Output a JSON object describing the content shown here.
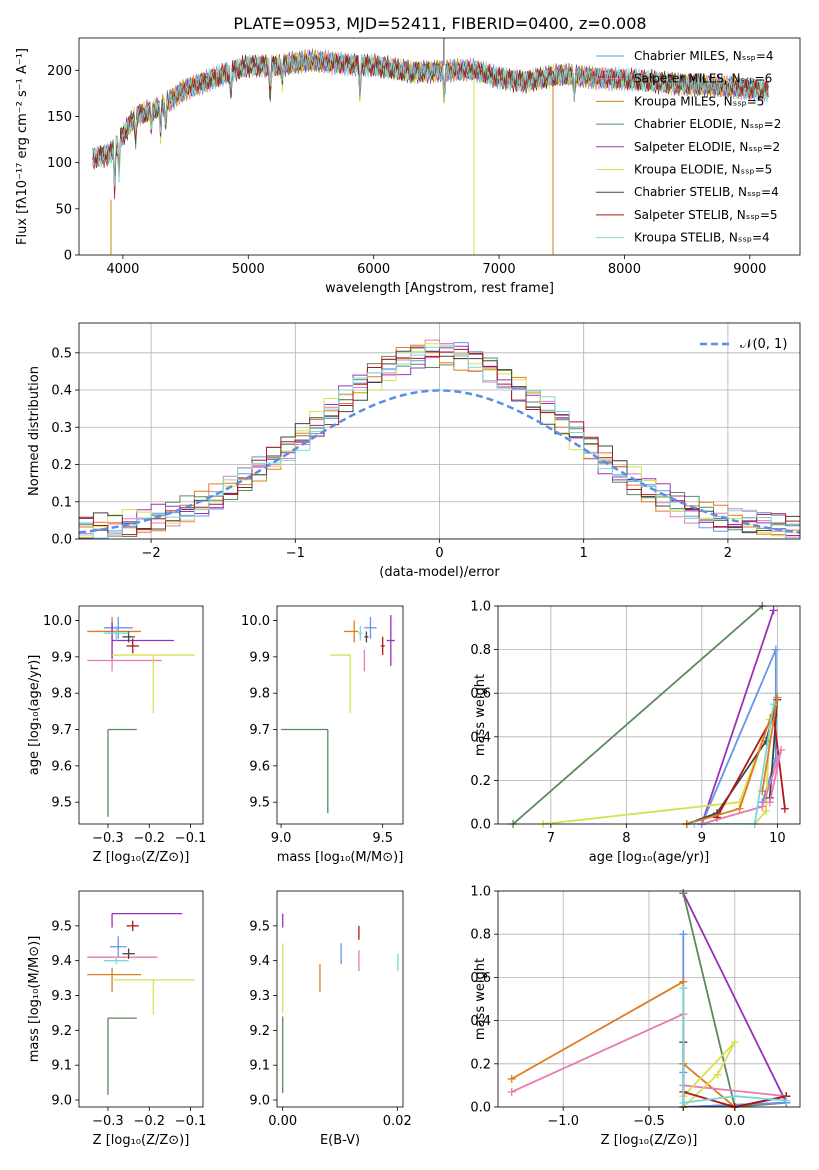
{
  "chart_data": [
    {
      "type": "line",
      "title": "PLATE=0953, MJD=52411, FIBERID=0400, z=0.008",
      "xlabel": "wavelength [Angstrom, rest frame]",
      "ylabel": "Flux [fλ10⁻¹⁷ erg cm⁻² s⁻¹ A⁻¹]",
      "xlim": [
        3650,
        9400
      ],
      "ylim": [
        0,
        235
      ],
      "xticks": [
        4000,
        5000,
        6000,
        7000,
        8000,
        9000
      ],
      "yticks": [
        0,
        50,
        100,
        150,
        200
      ],
      "legend_position": "top-right",
      "series": [
        {
          "name": "Chabrier MILES, Nₛₛₚ=4",
          "color": "#6495ed"
        },
        {
          "name": "Salpeter MILES, Nₛₛₚ=6",
          "color": "#e77ab3"
        },
        {
          "name": "Kroupa MILES, Nₛₛₚ=5",
          "color": "#c8860a"
        },
        {
          "name": "Chabrier ELODIE, Nₛₛₚ=2",
          "color": "#5a8a5a"
        },
        {
          "name": "Salpeter ELODIE, Nₛₛₚ=2",
          "color": "#9b30b8"
        },
        {
          "name": "Kroupa ELODIE, Nₛₛₚ=5",
          "color": "#d8e050"
        },
        {
          "name": "Chabrier STELIB, Nₛₛₚ=4",
          "color": "#444444"
        },
        {
          "name": "Salpeter STELIB, Nₛₛₚ=5",
          "color": "#b01818"
        },
        {
          "name": "Kroupa STELIB, Nₛₛₚ=4",
          "color": "#7ad8d8"
        }
      ],
      "continuum": {
        "x": [
          3760,
          3900,
          4000,
          4100,
          4300,
          4500,
          4800,
          5000,
          5200,
          5500,
          6000,
          6300,
          6600,
          6800,
          7000,
          7200,
          7500,
          8000,
          8500,
          9000,
          9150
        ],
        "y": [
          105,
          110,
          130,
          150,
          160,
          180,
          195,
          205,
          205,
          210,
          205,
          198,
          200,
          200,
          192,
          188,
          195,
          190,
          185,
          180,
          178
        ]
      }
    },
    {
      "type": "line",
      "xlabel": "(data-model)/error",
      "ylabel": "Normed distribution",
      "xlim": [
        -2.5,
        2.5
      ],
      "ylim": [
        0,
        0.58
      ],
      "xticks": [
        -2,
        -1,
        0,
        1,
        2
      ],
      "yticks": [
        0.0,
        0.1,
        0.2,
        0.3,
        0.4,
        0.5
      ],
      "grid": true,
      "legend_position": "top-right",
      "legend": [
        "𝒩(0, 1)"
      ],
      "gaussian": {
        "mean": 0,
        "sigma": 1,
        "color": "#5b8ee6"
      }
    },
    {
      "type": "scatter",
      "xlabel": "Z [log₁₀(Z/Z⊙)]",
      "ylabel": "age  [log₁₀(age/yr)]",
      "xlim": [
        -0.37,
        -0.07
      ],
      "ylim": [
        9.44,
        10.04
      ],
      "xticks": [
        -0.3,
        -0.2,
        -0.1
      ],
      "yticks": [
        9.5,
        9.6,
        9.7,
        9.8,
        9.9,
        10.0
      ],
      "points": [
        {
          "x": -0.275,
          "y": 9.98,
          "xerr": [
            0.035,
            0.035
          ],
          "yerr": [
            0.03,
            0.03
          ],
          "color": "#6495ed"
        },
        {
          "x": -0.29,
          "y": 9.89,
          "xerr": [
            0.06,
            0.12
          ],
          "yerr": [
            0.03,
            0.03
          ],
          "color": "#e77ab3"
        },
        {
          "x": -0.29,
          "y": 9.97,
          "xerr": [
            0.06,
            0.07
          ],
          "yerr": [
            0.04,
            0.04
          ],
          "color": "#e07b20"
        },
        {
          "x": -0.3,
          "y": 9.7,
          "xerr": [
            0.0,
            0.07
          ],
          "yerr": [
            0.24,
            0.0
          ],
          "color": "#5a8a5a"
        },
        {
          "x": -0.29,
          "y": 9.945,
          "xerr": [
            0.0,
            0.15
          ],
          "yerr": [
            0.05,
            0.05
          ],
          "color": "#9b30b8"
        },
        {
          "x": -0.19,
          "y": 9.905,
          "xerr": [
            0.1,
            0.1
          ],
          "yerr": [
            0.16,
            0.0
          ],
          "color": "#d8e050"
        },
        {
          "x": -0.25,
          "y": 9.955,
          "xerr": [
            0.015,
            0.015
          ],
          "yerr": [
            0.015,
            0.015
          ],
          "color": "#444444"
        },
        {
          "x": -0.24,
          "y": 9.93,
          "xerr": [
            0.015,
            0.015
          ],
          "yerr": [
            0.02,
            0.02
          ],
          "color": "#b01818"
        },
        {
          "x": -0.28,
          "y": 9.965,
          "xerr": [
            0.03,
            0.03
          ],
          "yerr": [
            0.02,
            0.02
          ],
          "color": "#7ad8d8"
        }
      ]
    },
    {
      "type": "scatter",
      "xlabel": "mass [log₁₀(M/M⊙)]",
      "ylabel": "",
      "xlim": [
        8.98,
        9.6
      ],
      "ylim": [
        9.44,
        10.04
      ],
      "xticks": [
        9.0,
        9.5
      ],
      "yticks": [
        9.5,
        9.6,
        9.7,
        9.8,
        9.9,
        10.0
      ],
      "points": [
        {
          "x": 9.44,
          "y": 9.98,
          "xerr": [
            0.03,
            0.03
          ],
          "yerr": [
            0.03,
            0.03
          ],
          "color": "#6495ed"
        },
        {
          "x": 9.41,
          "y": 9.89,
          "xerr": [
            0.0,
            0.0
          ],
          "yerr": [
            0.03,
            0.03
          ],
          "color": "#e77ab3"
        },
        {
          "x": 9.36,
          "y": 9.97,
          "xerr": [
            0.05,
            0.02
          ],
          "yerr": [
            0.03,
            0.03
          ],
          "color": "#e07b20"
        },
        {
          "x": 9.23,
          "y": 9.7,
          "xerr": [
            0.23,
            0.0
          ],
          "yerr": [
            0.23,
            0.0
          ],
          "color": "#5a8a5a"
        },
        {
          "x": 9.54,
          "y": 9.945,
          "xerr": [
            0.02,
            0.02
          ],
          "yerr": [
            0.07,
            0.07
          ],
          "color": "#9b30b8"
        },
        {
          "x": 9.34,
          "y": 9.905,
          "xerr": [
            0.1,
            0.0
          ],
          "yerr": [
            0.16,
            0.0
          ],
          "color": "#d8e050"
        },
        {
          "x": 9.42,
          "y": 9.955,
          "xerr": [
            0.01,
            0.01
          ],
          "yerr": [
            0.015,
            0.015
          ],
          "color": "#444444"
        },
        {
          "x": 9.5,
          "y": 9.93,
          "xerr": [
            0.01,
            0.01
          ],
          "yerr": [
            0.025,
            0.025
          ],
          "color": "#b01818"
        },
        {
          "x": 9.39,
          "y": 9.965,
          "xerr": [
            0.01,
            0.01
          ],
          "yerr": [
            0.02,
            0.02
          ],
          "color": "#7ad8d8"
        }
      ]
    },
    {
      "type": "line",
      "xlabel": "age  [log₁₀(age/yr)]",
      "ylabel": "mass weight",
      "xlim": [
        6.3,
        10.3
      ],
      "ylim": [
        0,
        1
      ],
      "xticks": [
        7,
        8,
        9,
        10
      ],
      "yticks": [
        0.0,
        0.2,
        0.4,
        0.6,
        0.8,
        1.0
      ],
      "grid": true,
      "series": [
        {
          "color": "#5a8a5a",
          "x": [
            6.5,
            9.8
          ],
          "y": [
            0.0,
            1.0
          ]
        },
        {
          "color": "#9b30b8",
          "x": [
            9.0,
            9.95,
            9.0
          ],
          "y": [
            0.0,
            0.98,
            0.0
          ]
        },
        {
          "color": "#6495ed",
          "x": [
            9.0,
            9.98,
            9.98,
            9.8,
            9.9
          ],
          "y": [
            0.0,
            0.8,
            0.3,
            0.1,
            0.2
          ]
        },
        {
          "color": "#d8e050",
          "x": [
            6.9,
            9.5,
            9.9,
            9.85,
            9.7
          ],
          "y": [
            0.0,
            0.1,
            0.48,
            0.06,
            0.0
          ]
        },
        {
          "color": "#444444",
          "x": [
            8.8,
            9.2,
            9.85,
            10.0,
            9.9
          ],
          "y": [
            0.0,
            0.05,
            0.38,
            0.57,
            0.12
          ]
        },
        {
          "color": "#b01818",
          "x": [
            9.2,
            9.95,
            10.1
          ],
          "y": [
            0.03,
            0.5,
            0.07
          ]
        },
        {
          "color": "#e07b20",
          "x": [
            8.8,
            9.5,
            10.0,
            9.8
          ],
          "y": [
            0.0,
            0.07,
            0.58,
            0.15
          ]
        },
        {
          "color": "#e77ab3",
          "x": [
            9.0,
            9.8,
            10.05,
            9.9
          ],
          "y": [
            0.0,
            0.08,
            0.34,
            0.1
          ]
        },
        {
          "color": "#7ad8d8",
          "x": [
            8.9,
            9.7,
            9.95
          ],
          "y": [
            0.0,
            0.0,
            0.55
          ]
        }
      ]
    },
    {
      "type": "scatter",
      "xlabel": "Z [log₁₀(Z/Z⊙)]",
      "ylabel": "mass [log₁₀(M/M⊙)]",
      "xlim": [
        -0.37,
        -0.07
      ],
      "ylim": [
        8.98,
        9.6
      ],
      "xticks": [
        -0.3,
        -0.2,
        -0.1
      ],
      "yticks": [
        9.0,
        9.1,
        9.2,
        9.3,
        9.4,
        9.5
      ],
      "points": [
        {
          "x": -0.275,
          "y": 9.44,
          "xerr": [
            0.02,
            0.02
          ],
          "yerr": [
            0.03,
            0.03
          ],
          "color": "#6495ed"
        },
        {
          "x": -0.29,
          "y": 9.41,
          "xerr": [
            0.06,
            0.11
          ],
          "yerr": [
            0.0,
            0.0
          ],
          "color": "#e77ab3"
        },
        {
          "x": -0.29,
          "y": 9.36,
          "xerr": [
            0.06,
            0.07
          ],
          "yerr": [
            0.05,
            0.02
          ],
          "color": "#e07b20"
        },
        {
          "x": -0.3,
          "y": 9.235,
          "xerr": [
            0.0,
            0.07
          ],
          "yerr": [
            0.22,
            0.0
          ],
          "color": "#5a8a5a"
        },
        {
          "x": -0.29,
          "y": 9.535,
          "xerr": [
            0.0,
            0.17
          ],
          "yerr": [
            0.04,
            0.0
          ],
          "color": "#9b30b8"
        },
        {
          "x": -0.19,
          "y": 9.345,
          "xerr": [
            0.1,
            0.1
          ],
          "yerr": [
            0.1,
            0.0
          ],
          "color": "#d8e050"
        },
        {
          "x": -0.25,
          "y": 9.42,
          "xerr": [
            0.015,
            0.015
          ],
          "yerr": [
            0.015,
            0.015
          ],
          "color": "#444444"
        },
        {
          "x": -0.24,
          "y": 9.5,
          "xerr": [
            0.015,
            0.015
          ],
          "yerr": [
            0.015,
            0.015
          ],
          "color": "#b01818"
        },
        {
          "x": -0.28,
          "y": 9.4,
          "xerr": [
            0.03,
            0.03
          ],
          "yerr": [
            0.01,
            0.01
          ],
          "color": "#7ad8d8"
        }
      ]
    },
    {
      "type": "scatter",
      "xlabel": "E(B-V)",
      "ylabel": "",
      "xlim": [
        -0.001,
        0.021
      ],
      "ylim": [
        8.98,
        9.6
      ],
      "xticks": [
        0.0,
        0.02
      ],
      "yticks": [
        9.0,
        9.1,
        9.2,
        9.3,
        9.4,
        9.5
      ],
      "points": [
        {
          "x": 0.0102,
          "y": 9.42,
          "xerr": [
            0,
            0
          ],
          "yerr": [
            0.03,
            0.03
          ],
          "color": "#6495ed"
        },
        {
          "x": 0.0133,
          "y": 9.4,
          "xerr": [
            0,
            0
          ],
          "yerr": [
            0.03,
            0.03
          ],
          "color": "#e77ab3"
        },
        {
          "x": 0.0065,
          "y": 9.36,
          "xerr": [
            0,
            0
          ],
          "yerr": [
            0.05,
            0.03
          ],
          "color": "#e07b20"
        },
        {
          "x": 0.0,
          "y": 9.14,
          "xerr": [
            0,
            0
          ],
          "yerr": [
            0.12,
            0.1
          ],
          "color": "#5a8a5a"
        },
        {
          "x": 0.0,
          "y": 9.535,
          "xerr": [
            0,
            0
          ],
          "yerr": [
            0.04,
            0.0
          ],
          "color": "#9b30b8"
        },
        {
          "x": 0.0,
          "y": 9.37,
          "xerr": [
            0,
            0
          ],
          "yerr": [
            0.12,
            0.08
          ],
          "color": "#d8e050"
        },
        {
          "x": 0.0133,
          "y": 9.48,
          "xerr": [
            0,
            0
          ],
          "yerr": [
            0.02,
            0.02
          ],
          "color": "#b01818"
        },
        {
          "x": 0.0201,
          "y": 9.4,
          "xerr": [
            0,
            0
          ],
          "yerr": [
            0.03,
            0.02
          ],
          "color": "#7ad8d8"
        }
      ]
    },
    {
      "type": "line",
      "xlabel": "Z [log₁₀(Z/Z⊙)]",
      "ylabel": "mass weight",
      "xlim": [
        -1.38,
        0.38
      ],
      "ylim": [
        0,
        1
      ],
      "xticks": [
        -1.0,
        -0.5,
        0.0
      ],
      "yticks": [
        0.0,
        0.2,
        0.4,
        0.6,
        0.8,
        1.0
      ],
      "grid": true,
      "series": [
        {
          "color": "#9b30b8",
          "x": [
            -0.3,
            0.3,
            -0.3
          ],
          "y": [
            0.99,
            0.02,
            0.0
          ]
        },
        {
          "color": "#5a8a5a",
          "x": [
            -0.3,
            0.0,
            0.3
          ],
          "y": [
            0.99,
            0.0,
            0.02
          ]
        },
        {
          "color": "#6495ed",
          "x": [
            -0.3,
            -0.3,
            -0.3,
            -0.3,
            0.3
          ],
          "y": [
            0.8,
            0.2,
            0.16,
            0.0,
            0.02
          ]
        },
        {
          "color": "#e07b20",
          "x": [
            -1.3,
            -0.3,
            -0.3,
            0.0,
            0.3
          ],
          "y": [
            0.13,
            0.58,
            0.2,
            0.0,
            0.05
          ]
        },
        {
          "color": "#e77ab3",
          "x": [
            -1.3,
            -0.3,
            -0.3,
            0.3,
            0.0
          ],
          "y": [
            0.07,
            0.43,
            0.1,
            0.05,
            0.0
          ]
        },
        {
          "color": "#d8e050",
          "x": [
            -0.3,
            0.0,
            -0.1,
            -0.3
          ],
          "y": [
            0.05,
            0.3,
            0.15,
            0.0
          ]
        },
        {
          "color": "#444444",
          "x": [
            -0.3,
            -0.3,
            0.0,
            0.3
          ],
          "y": [
            0.3,
            0.0,
            0.0,
            0.05
          ]
        },
        {
          "color": "#b01818",
          "x": [
            -0.3,
            0.0,
            0.3
          ],
          "y": [
            0.07,
            0.0,
            0.05
          ]
        },
        {
          "color": "#7ad8d8",
          "x": [
            -0.3,
            -0.3,
            0.0,
            0.3
          ],
          "y": [
            0.55,
            0.02,
            0.05,
            0.03
          ]
        }
      ]
    }
  ]
}
